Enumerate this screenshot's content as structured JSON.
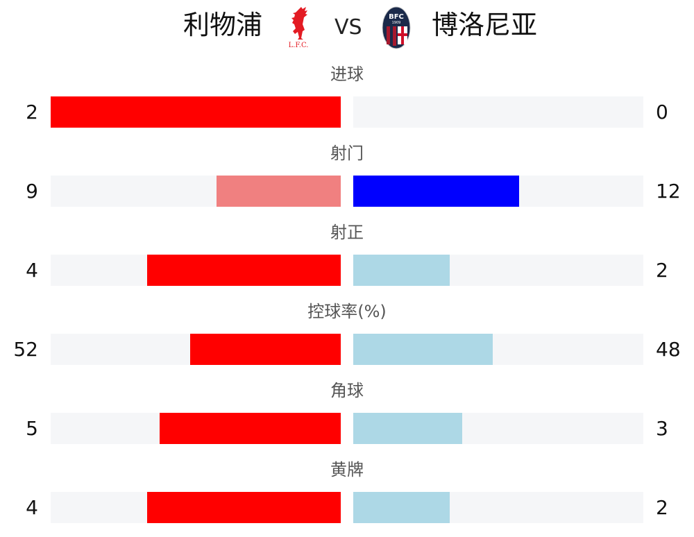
{
  "header": {
    "home_team": "利物浦",
    "away_team": "博洛尼亚",
    "vs": "VS",
    "home_logo": {
      "icon": "liverbird-crest",
      "text": "L.F.C.",
      "color": "#e31b23"
    },
    "away_logo": {
      "icon": "bologna-crest",
      "text": "BFC",
      "year": "1909"
    }
  },
  "stats": [
    {
      "label": "进球",
      "home": 2,
      "away": 0,
      "home_color": "#ff0000",
      "away_color": "#add8e6"
    },
    {
      "label": "射门",
      "home": 9,
      "away": 12,
      "home_color": "#f08080",
      "away_color": "#0000ff"
    },
    {
      "label": "射正",
      "home": 4,
      "away": 2,
      "home_color": "#ff0000",
      "away_color": "#add8e6"
    },
    {
      "label": "控球率(%)",
      "home": 52,
      "away": 48,
      "home_color": "#ff0000",
      "away_color": "#add8e6"
    },
    {
      "label": "角球",
      "home": 5,
      "away": 3,
      "home_color": "#ff0000",
      "away_color": "#add8e6"
    },
    {
      "label": "黄牌",
      "home": 4,
      "away": 2,
      "home_color": "#ff0000",
      "away_color": "#add8e6"
    }
  ]
}
